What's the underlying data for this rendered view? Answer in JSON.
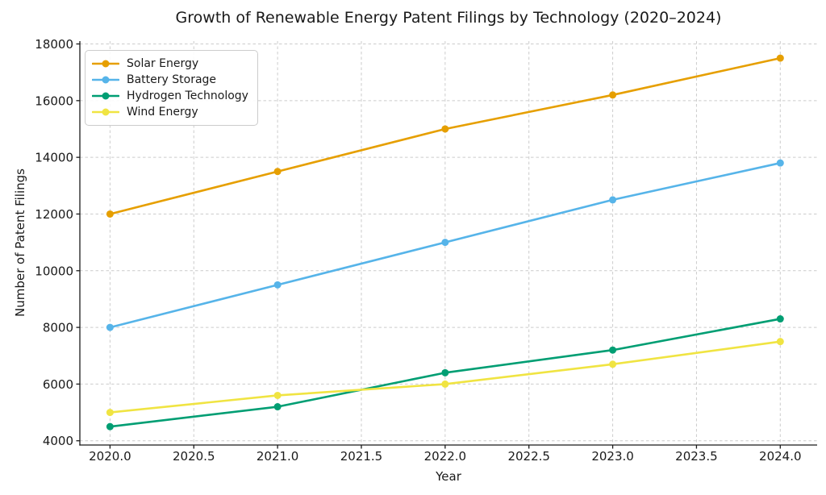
{
  "figure": {
    "background": "#ffffff",
    "text_color": "#1a1a1a",
    "spine_color": "#1a1a1a",
    "grid_color": "#cccccc"
  },
  "chart_data": {
    "type": "line",
    "title": "Growth of Renewable Energy Patent Filings by Technology (2020–2024)",
    "xlabel": "Year",
    "ylabel": "Number of Patent Filings",
    "x": [
      2020,
      2021,
      2022,
      2023,
      2024
    ],
    "series": [
      {
        "name": "Solar Energy",
        "color": "#E69F00",
        "values": [
          12000,
          13500,
          15000,
          16200,
          17500
        ]
      },
      {
        "name": "Battery Storage",
        "color": "#56B4E9",
        "values": [
          8000,
          9500,
          11000,
          12500,
          13800
        ]
      },
      {
        "name": "Hydrogen Technology",
        "color": "#009E73",
        "values": [
          4500,
          5200,
          6400,
          7200,
          8300
        ]
      },
      {
        "name": "Wind Energy",
        "color": "#F0E442",
        "values": [
          5000,
          5600,
          6000,
          6700,
          7500
        ]
      }
    ],
    "xlim": [
      2019.82,
      2024.22
    ],
    "ylim": [
      3850,
      18100
    ],
    "xticks": [
      2020.0,
      2020.5,
      2021.0,
      2021.5,
      2022.0,
      2022.5,
      2023.0,
      2023.5,
      2024.0
    ],
    "xtick_labels": [
      "2020.0",
      "2020.5",
      "2021.0",
      "2021.5",
      "2022.0",
      "2022.5",
      "2023.0",
      "2023.5",
      "2024.0"
    ],
    "yticks": [
      4000,
      6000,
      8000,
      10000,
      12000,
      14000,
      16000,
      18000
    ],
    "ytick_labels": [
      "4000",
      "6000",
      "8000",
      "10000",
      "12000",
      "14000",
      "16000",
      "18000"
    ],
    "grid": true,
    "grid_style": "dashed",
    "legend_position": "upper-left",
    "marker": "circle",
    "line_width": 2.6,
    "marker_radius": 4.5
  }
}
